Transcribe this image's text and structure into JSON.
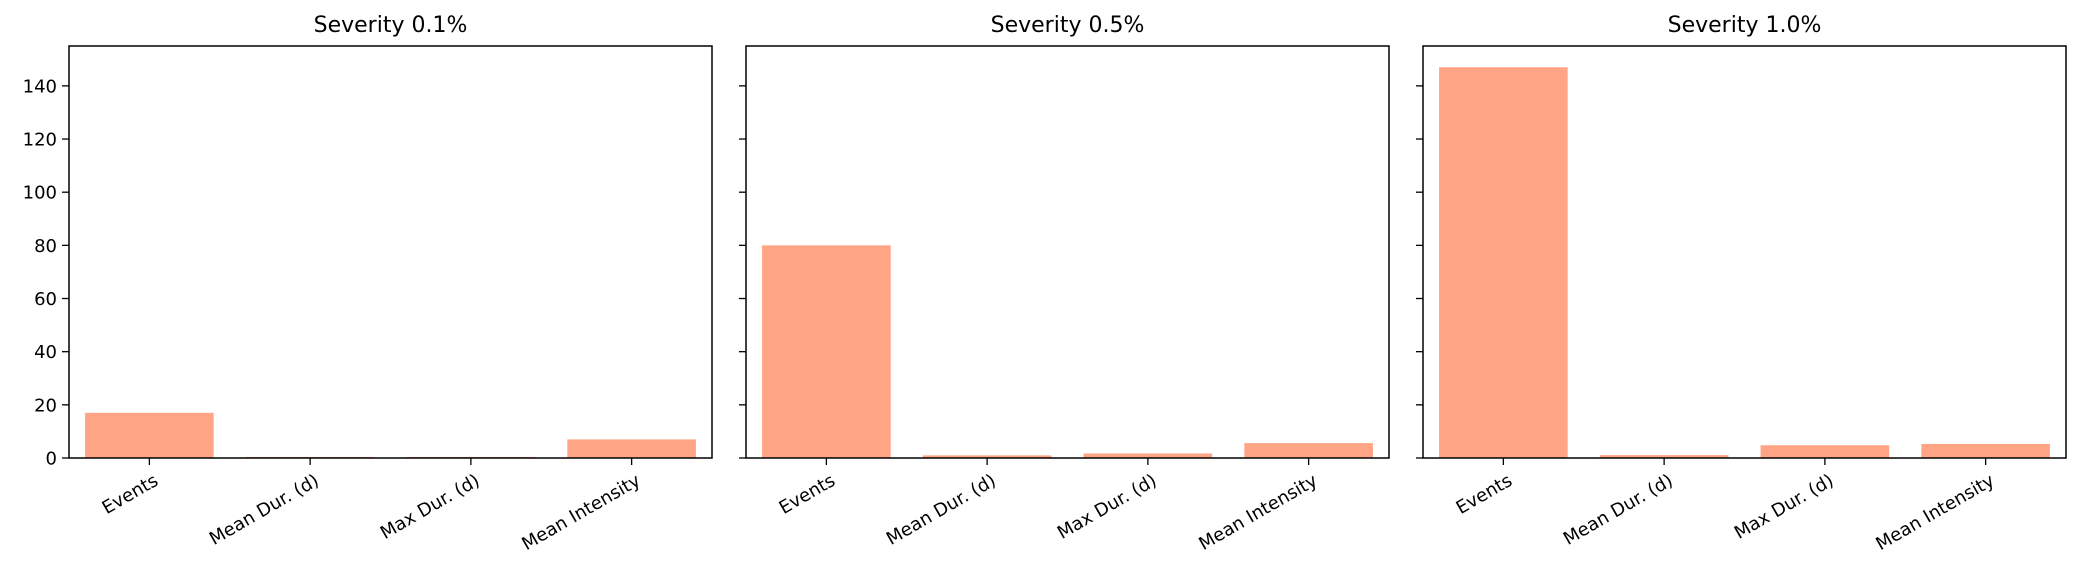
{
  "chart_data": [
    {
      "type": "bar",
      "title": "Severity 0.1%",
      "categories": [
        "Events",
        "Mean Dur. (d)",
        "Max Dur. (d)",
        "Mean Intensity"
      ],
      "values": [
        17,
        0.4,
        0.4,
        7
      ],
      "xlabel": "",
      "ylabel": "",
      "ylim": [
        0,
        155
      ],
      "yticks": [
        "0",
        "20",
        "40",
        "60",
        "80",
        "100",
        "120",
        "140"
      ],
      "grid": false
    },
    {
      "type": "bar",
      "title": "Severity 0.5%",
      "categories": [
        "Events",
        "Mean Dur. (d)",
        "Max Dur. (d)",
        "Mean Intensity"
      ],
      "values": [
        80,
        1.0,
        1.7,
        5.6
      ],
      "xlabel": "",
      "ylabel": "",
      "ylim": [
        0,
        155
      ],
      "grid": false
    },
    {
      "type": "bar",
      "title": "Severity 1.0%",
      "categories": [
        "Events",
        "Mean Dur. (d)",
        "Max Dur. (d)",
        "Mean Intensity"
      ],
      "values": [
        147,
        1.1,
        4.8,
        5.3
      ],
      "xlabel": "",
      "ylabel": "",
      "ylim": [
        0,
        155
      ],
      "grid": false
    }
  ],
  "colors": {
    "bar": "#ffa585",
    "axis": "#000000",
    "background": "#ffffff"
  }
}
